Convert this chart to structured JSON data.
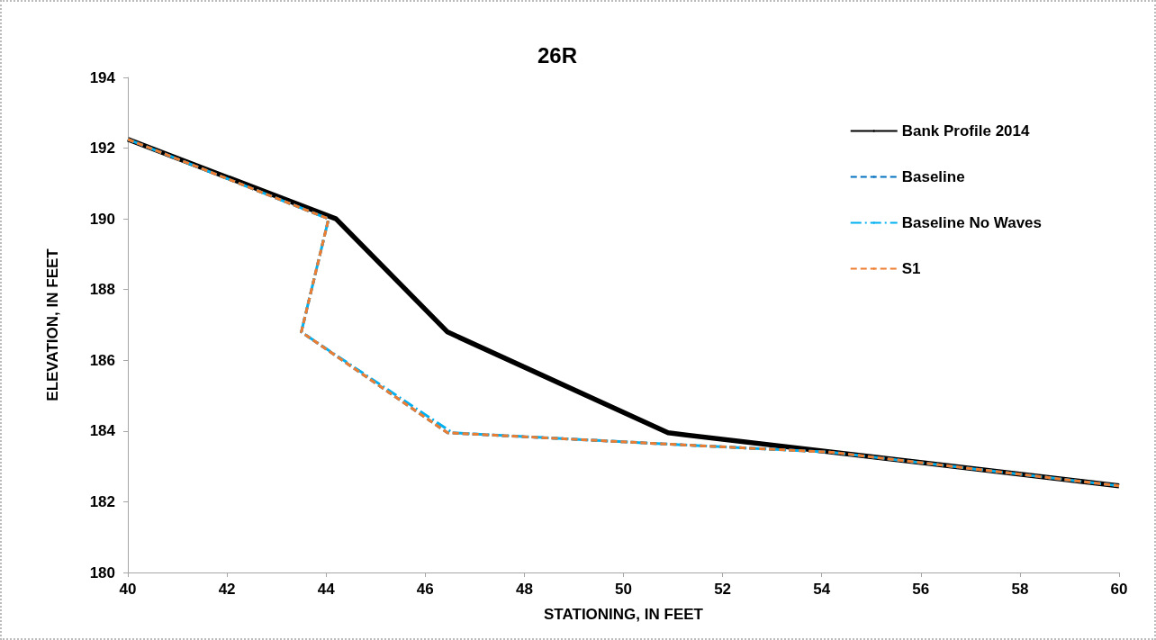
{
  "chart_data": {
    "type": "line",
    "title": "26R",
    "xlabel": "STATIONING, IN FEET",
    "ylabel": "ELEVATION, IN FEET",
    "xlim": [
      40,
      60
    ],
    "xticks": [
      40,
      42,
      44,
      46,
      48,
      50,
      52,
      54,
      56,
      58,
      60
    ],
    "ylim": [
      180,
      194
    ],
    "yticks": [
      180,
      182,
      184,
      186,
      188,
      190,
      192,
      194
    ],
    "grid": false,
    "legend": "top right",
    "marker": "none",
    "series": [
      {
        "name": "Bank Profile 2014",
        "color": "#000000",
        "line_style": "solid",
        "x": [
          40,
          44.2,
          46.45,
          50.9,
          60
        ],
        "values": [
          192.25,
          190.0,
          186.8,
          183.95,
          182.45
        ]
      },
      {
        "name": "Baseline",
        "color": "#0070c0",
        "line_style": "dashed",
        "x": [
          40,
          44.05,
          43.5,
          46.45,
          50.9,
          54.2,
          60
        ],
        "values": [
          192.25,
          190.0,
          186.8,
          183.95,
          183.63,
          183.4,
          182.45
        ]
      },
      {
        "name": "Baseline No Waves",
        "color": "#00b0f0",
        "line_style": "dashdot",
        "x": [
          40,
          44.05,
          43.5,
          46.55,
          50.9,
          54.2,
          60
        ],
        "values": [
          192.25,
          190.0,
          186.8,
          183.95,
          183.63,
          183.4,
          182.45
        ]
      },
      {
        "name": "S1",
        "color": "#ed7d31",
        "line_style": "dashed",
        "x": [
          40,
          44.05,
          43.5,
          46.45,
          50.9,
          54.2,
          60
        ],
        "values": [
          192.25,
          190.0,
          186.8,
          183.95,
          183.63,
          183.4,
          182.45
        ]
      }
    ]
  }
}
